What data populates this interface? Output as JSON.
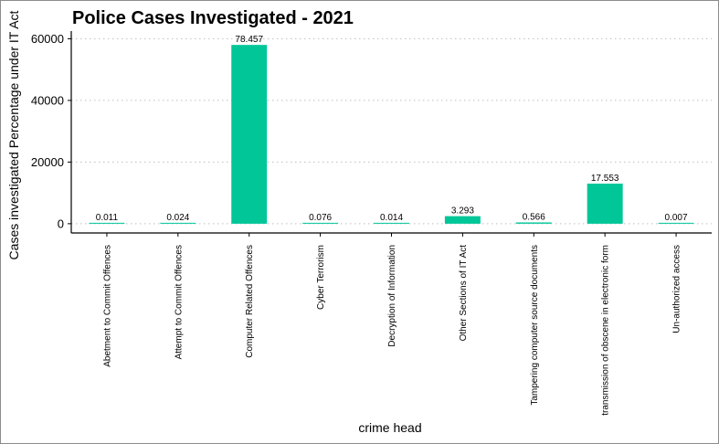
{
  "chart_data": {
    "type": "bar",
    "title": "Police Cases Investigated - 2021",
    "xlabel": "crime head",
    "ylabel": "Cases investigated Percentage under IT Act",
    "ylim": [
      -3000,
      62500
    ],
    "yticks": [
      0,
      20000,
      40000,
      60000
    ],
    "ytick_labels": [
      "0",
      "20000",
      "40000",
      "60000"
    ],
    "grid": "horizontal dotted",
    "legend": "none",
    "bar_color": "#00C698",
    "categories": [
      "Abetment to Commit Offences",
      "Attempt to Commit Offences",
      "Computer Related Offences",
      "Cyber Terrorism",
      "Decryption of Information",
      "Other Sections of IT Act",
      "Tampering computer source documents",
      "transmission of obscene in electronic form",
      "Un-authorized access"
    ],
    "values": [
      8,
      18,
      58000,
      56,
      10,
      2450,
      420,
      13000,
      5
    ],
    "data_labels": [
      "0.011",
      "0.024",
      "78.457",
      "0.076",
      "0.014",
      "3.293",
      "0.566",
      "17.553",
      "0.007"
    ]
  }
}
